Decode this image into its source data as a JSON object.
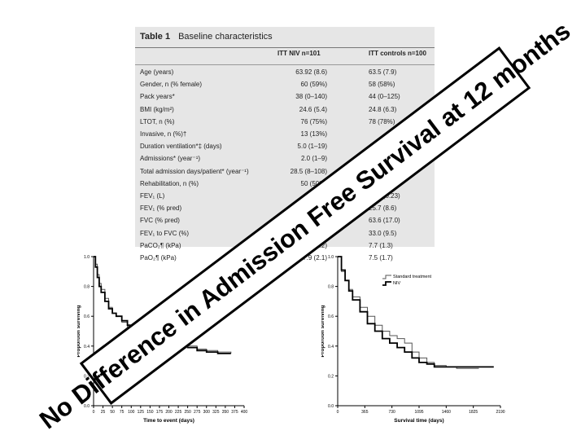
{
  "table": {
    "title_num": "Table 1",
    "title_text": "Baseline characteristics",
    "col1": "ITT NIV n=101",
    "col2": "ITT controls n=100",
    "rows": [
      {
        "label": "Age (years)",
        "niv": "63.92 (8.6)",
        "ctrl": "63.5 (7.9)"
      },
      {
        "label": "Gender, n (% female)",
        "niv": "60 (59%)",
        "ctrl": "58 (58%)"
      },
      {
        "label": "Pack years*",
        "niv": "38 (0–140)",
        "ctrl": "44 (0–125)"
      },
      {
        "label": "BMI (kg/m²)",
        "niv": "24.6 (5.4)",
        "ctrl": "24.8 (6.3)"
      },
      {
        "label": "LTOT, n (%)",
        "niv": "76 (75%)",
        "ctrl": "78 (78%)"
      },
      {
        "label": "Invasive, n (%)†",
        "niv": "13 (13%)",
        "ctrl": ""
      },
      {
        "label": "Duration ventilation*‡ (days)",
        "niv": "5.0 (1–19)",
        "ctrl": ""
      },
      {
        "label": "Admissions* (year⁻¹)",
        "niv": "2.0 (1–9)",
        "ctrl": ""
      },
      {
        "label": "Total admission days/patient* (year⁻¹)",
        "niv": "28.5 (8–108)",
        "ctrl": ""
      },
      {
        "label": "Rehabilitation, n (%)",
        "niv": "50 (50%)",
        "ctrl": "(31%)"
      },
      {
        "label": "FEV₁ (L)",
        "niv": "0.6",
        "ctrl": "0.65 (0.23)"
      },
      {
        "label": "FEV₁ (% pred)",
        "niv": "",
        "ctrl": "25.7 (8.6)"
      },
      {
        "label": "FVC (% pred)",
        "niv": "",
        "ctrl": "63.6 (17.0)"
      },
      {
        "label": "FEV₁ to FVC (%)",
        "niv": "",
        "ctrl": "33.0 (9.5)"
      },
      {
        "label": "PaCO₂¶ (kPa)",
        "niv": "(1.2)",
        "ctrl": "7.7 (1.3)"
      },
      {
        "label": "PaO₂¶ (kPa)",
        "niv": "7.9 (2.1)",
        "ctrl": "7.5 (1.7)"
      }
    ]
  },
  "banner": {
    "text": "No Difference in Admission Free Survival at 12 months"
  },
  "chart_data": [
    {
      "type": "line",
      "xlabel": "Time to event (days)",
      "ylabel": "Proportion surviving",
      "xlim": [
        0,
        400
      ],
      "ylim": [
        0.0,
        1.0
      ],
      "xticks": [
        "0",
        "25",
        "50",
        "75",
        "100",
        "125",
        "150",
        "175",
        "200",
        "225",
        "250",
        "275",
        "300",
        "325",
        "350",
        "375",
        "400"
      ],
      "yticks": [
        "0.0",
        "0.2",
        "0.4",
        "0.6",
        "0.8",
        "1.0"
      ],
      "series": [
        {
          "x": [
            0,
            5,
            10,
            15,
            20,
            30,
            40,
            50,
            60,
            75,
            90,
            110,
            130,
            150,
            175,
            200,
            225,
            250,
            275,
            300,
            330,
            365
          ],
          "y": [
            1.0,
            0.95,
            0.88,
            0.82,
            0.78,
            0.72,
            0.66,
            0.62,
            0.6,
            0.56,
            0.53,
            0.5,
            0.47,
            0.46,
            0.46,
            0.45,
            0.43,
            0.4,
            0.38,
            0.37,
            0.36,
            0.35
          ]
        },
        {
          "x": [
            0,
            5,
            10,
            15,
            20,
            30,
            40,
            50,
            60,
            75,
            90,
            110,
            130,
            150,
            175,
            200,
            225,
            250,
            275,
            300,
            330,
            365
          ],
          "y": [
            1.0,
            0.93,
            0.86,
            0.8,
            0.76,
            0.7,
            0.65,
            0.62,
            0.6,
            0.57,
            0.54,
            0.5,
            0.48,
            0.47,
            0.45,
            0.44,
            0.42,
            0.39,
            0.37,
            0.36,
            0.35,
            0.35
          ]
        }
      ]
    },
    {
      "type": "line",
      "xlabel": "Survival time (days)",
      "ylabel": "Proportion surviving",
      "xlim": [
        0,
        2190
      ],
      "ylim": [
        0.0,
        1.0
      ],
      "xticks": [
        "0",
        "365",
        "730",
        "1095",
        "1460",
        "1825",
        "2190"
      ],
      "yticks": [
        "0.0",
        "0.2",
        "0.4",
        "0.6",
        "0.8",
        "1.0"
      ],
      "legend": "top-right",
      "series": [
        {
          "name": "Standard treatment",
          "x": [
            0,
            50,
            100,
            150,
            200,
            300,
            400,
            500,
            600,
            700,
            800,
            900,
            1000,
            1095,
            1200,
            1300,
            1460,
            1600,
            1825,
            1900
          ],
          "y": [
            1.0,
            0.9,
            0.84,
            0.78,
            0.73,
            0.66,
            0.6,
            0.54,
            0.5,
            0.47,
            0.45,
            0.42,
            0.36,
            0.32,
            0.29,
            0.27,
            0.26,
            0.25,
            0.25,
            0.25
          ]
        },
        {
          "name": "NIV",
          "x": [
            0,
            50,
            100,
            150,
            200,
            300,
            400,
            500,
            600,
            700,
            800,
            900,
            1000,
            1095,
            1200,
            1300,
            1460,
            1600,
            1825,
            2100
          ],
          "y": [
            1.0,
            0.91,
            0.84,
            0.77,
            0.71,
            0.63,
            0.55,
            0.5,
            0.45,
            0.42,
            0.39,
            0.36,
            0.32,
            0.29,
            0.28,
            0.26,
            0.26,
            0.26,
            0.26,
            0.26
          ]
        }
      ]
    }
  ]
}
